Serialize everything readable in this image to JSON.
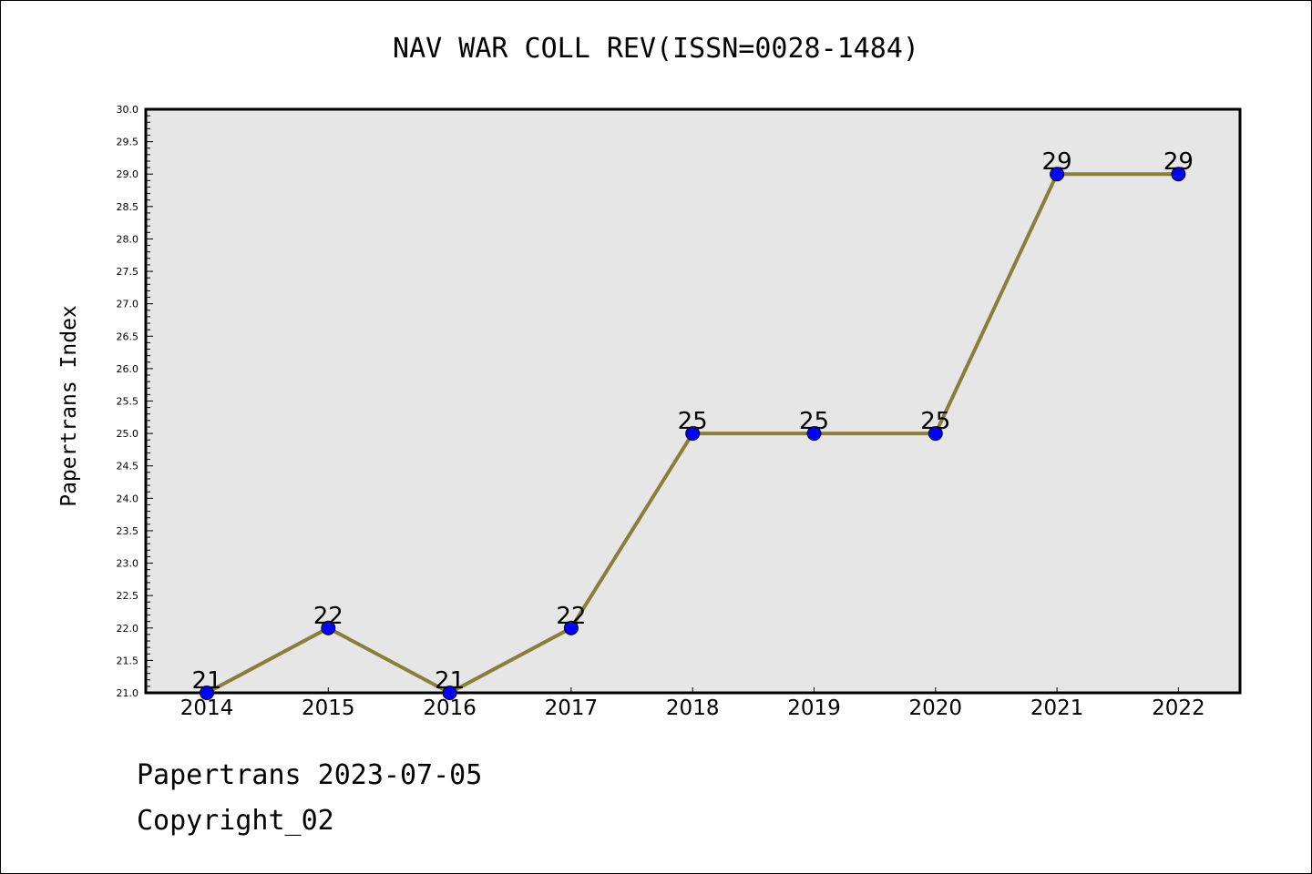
{
  "chart_data": {
    "type": "line",
    "title": "NAV WAR COLL REV(ISSN=0028-1484)",
    "xlabel": "",
    "ylabel": "Papertrans Index",
    "categories": [
      "2014",
      "2015",
      "2016",
      "2017",
      "2018",
      "2019",
      "2020",
      "2021",
      "2022"
    ],
    "series": [
      {
        "values": [
          21,
          22,
          21,
          22,
          25,
          25,
          25,
          29,
          29
        ]
      }
    ],
    "data_labels": [
      "21",
      "22",
      "21",
      "22",
      "25",
      "25",
      "25",
      "29",
      "29"
    ],
    "ylim": [
      21.0,
      30.0
    ],
    "y_ticks": [
      "21.0",
      "21.5",
      "22.0",
      "22.5",
      "23.0",
      "23.5",
      "24.0",
      "24.5",
      "25.0",
      "25.5",
      "26.0",
      "26.5",
      "27.0",
      "27.5",
      "28.0",
      "28.5",
      "29.0",
      "29.5",
      "30.0"
    ],
    "grid": false,
    "line_color": "#8b7d3a",
    "marker_color": "#0000ff",
    "plot_background": "#e6e6e6"
  },
  "footer": {
    "date_line": "Papertrans 2023-07-05",
    "copyright": "Copyright_02"
  }
}
